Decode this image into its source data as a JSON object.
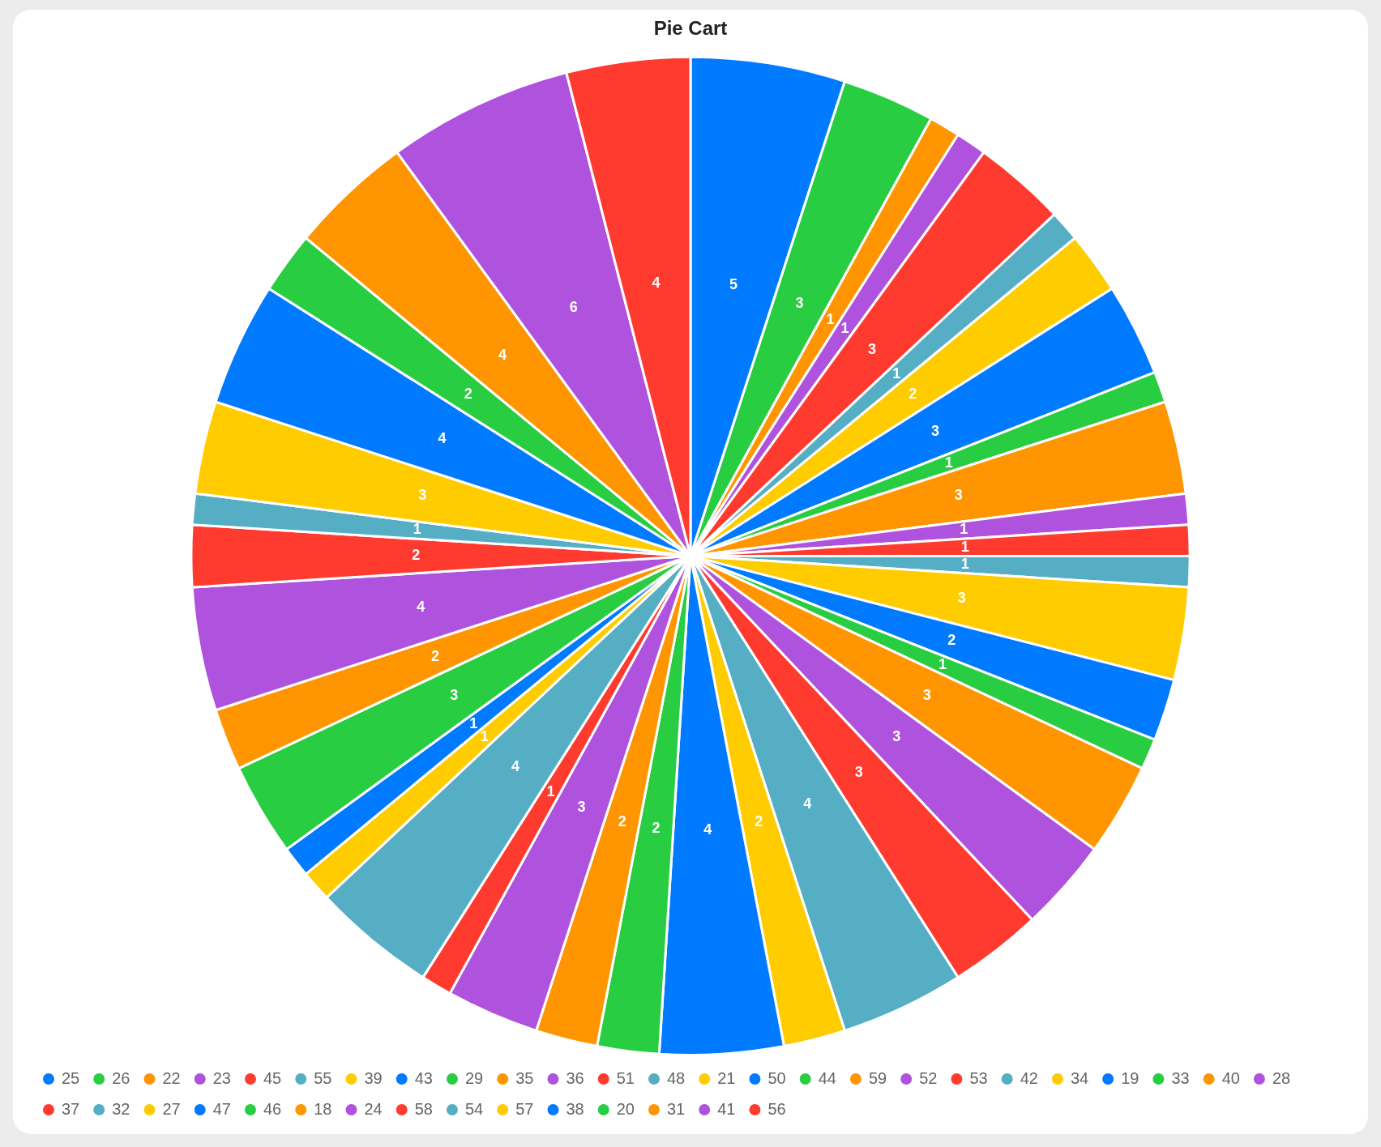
{
  "chart_data": {
    "type": "pie",
    "title": "Pie Cart",
    "categories": [
      "25",
      "26",
      "22",
      "23",
      "45",
      "55",
      "39",
      "43",
      "29",
      "35",
      "36",
      "51",
      "48",
      "21",
      "50",
      "44",
      "59",
      "52",
      "53",
      "42",
      "34",
      "19",
      "33",
      "40",
      "28",
      "37",
      "32",
      "27",
      "47",
      "46",
      "18",
      "24",
      "58",
      "54",
      "57",
      "38",
      "20",
      "31",
      "41",
      "56"
    ],
    "values": [
      5,
      3,
      1,
      1,
      3,
      1,
      2,
      3,
      1,
      3,
      1,
      1,
      1,
      3,
      2,
      1,
      3,
      3,
      3,
      4,
      2,
      4,
      2,
      2,
      3,
      1,
      4,
      1,
      1,
      3,
      2,
      4,
      2,
      1,
      3,
      4,
      2,
      4,
      6,
      4
    ],
    "colors": [
      "#007aff",
      "#28cd41",
      "#ff9500",
      "#af52de",
      "#ff3b30",
      "#55aec4",
      "#ffcc00",
      "#007aff",
      "#28cd41",
      "#ff9500",
      "#af52de",
      "#ff3b30",
      "#55aec4",
      "#ffcc00",
      "#007aff",
      "#28cd41",
      "#ff9500",
      "#af52de",
      "#ff3b30",
      "#55aec4",
      "#ffcc00",
      "#007aff",
      "#28cd41",
      "#ff9500",
      "#af52de",
      "#ff3b30",
      "#55aec4",
      "#ffcc00",
      "#007aff",
      "#28cd41",
      "#ff9500",
      "#af52de",
      "#ff3b30",
      "#55aec4",
      "#ffcc00",
      "#007aff",
      "#28cd41",
      "#ff9500",
      "#af52de",
      "#ff3b30"
    ],
    "legend": "bottom",
    "data_labels": true
  }
}
